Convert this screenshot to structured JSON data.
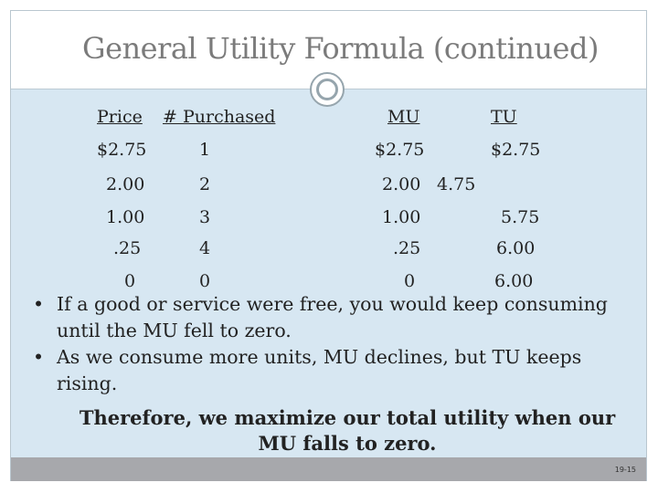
{
  "slide": {
    "title": "General Utility Formula (continued)",
    "page_number": "19-15"
  },
  "table": {
    "headers": {
      "price": "Price",
      "purchased": "# Purchased",
      "mu": "MU",
      "tu": "TU"
    },
    "rows": [
      {
        "price": "$2.75",
        "purchased": "1",
        "mu": "$2.75",
        "tu": "$2.75"
      },
      {
        "price": "2.00",
        "purchased": "2",
        "mu": "2.00",
        "tu": "4.75"
      },
      {
        "price": "1.00",
        "purchased": "3",
        "mu": "1.00",
        "tu": "5.75"
      },
      {
        "price": ".25",
        "purchased": "4",
        "mu": ".25",
        "tu": "6.00"
      },
      {
        "price": "0",
        "purchased": "0",
        "mu": "0",
        "tu": "6.00"
      }
    ]
  },
  "bullets": [
    "If a good or service were free, you would keep consuming until the MU fell to zero.",
    "As we consume more units, MU declines, but TU keeps rising."
  ],
  "bullet_symbol": "•",
  "conclusion": "Therefore, we maximize our total utility when our MU falls to zero."
}
